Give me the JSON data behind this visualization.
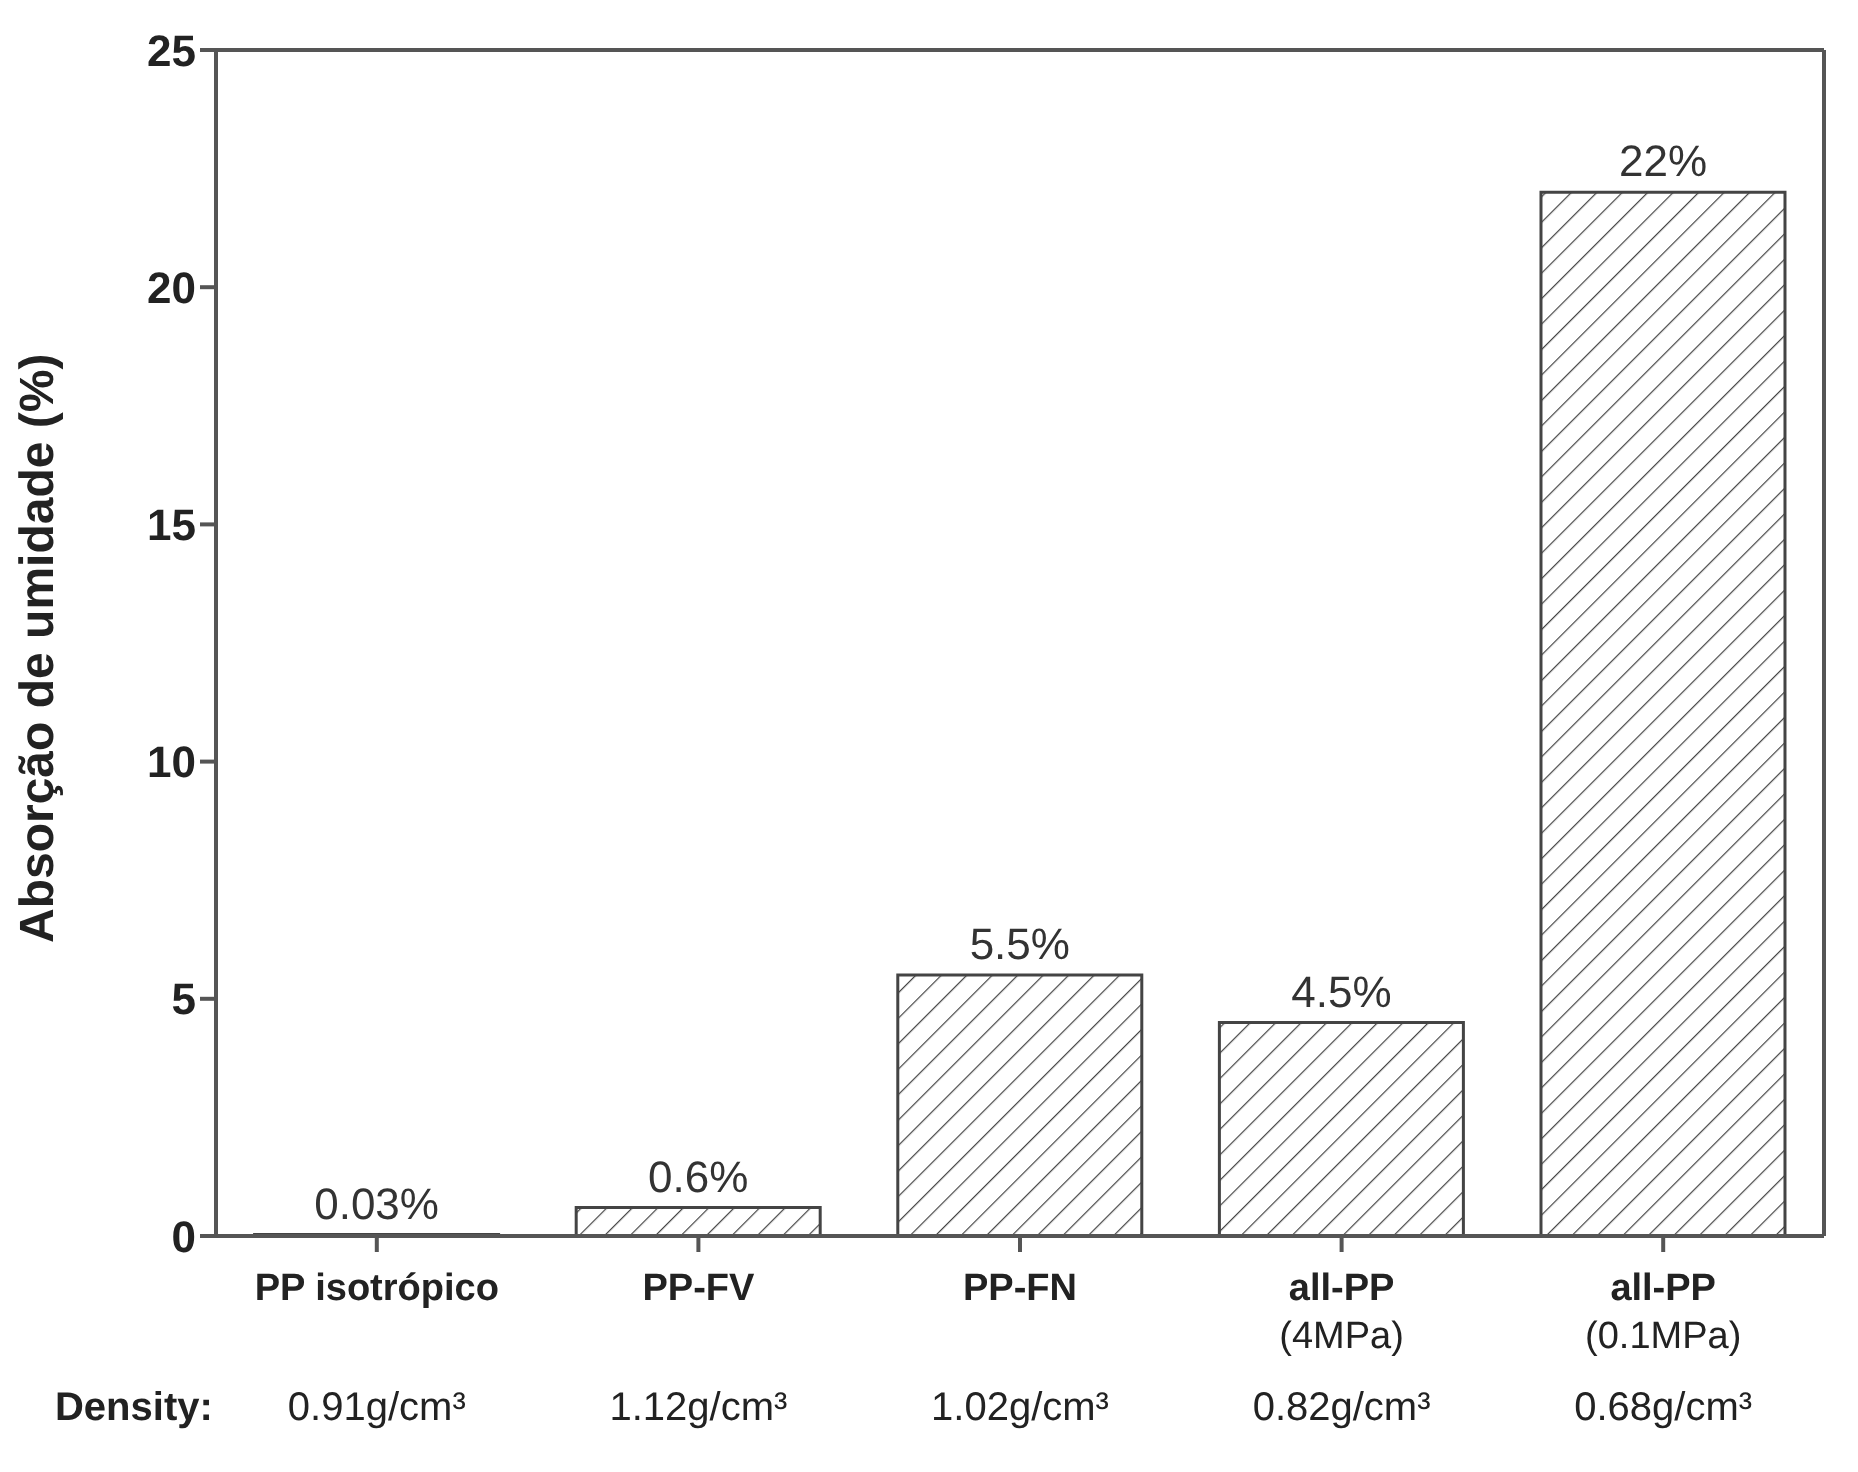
{
  "chart_data": {
    "type": "bar",
    "ylabel": "Absorção de umidade (%)",
    "categories": [
      "PP isotrópico",
      "PP-FV",
      "PP-FN",
      "all-PP\n(4MPa)",
      "all-PP\n(0.1MPa)"
    ],
    "values": [
      0.03,
      0.6,
      5.5,
      4.5,
      22
    ],
    "value_labels": [
      "0.03%",
      "0.6%",
      "5.5%",
      "4.5%",
      "22%"
    ],
    "color": "#444444",
    "ylim": [
      0,
      25
    ],
    "yticks": [
      0,
      5,
      10,
      15,
      20,
      25
    ],
    "grid": false,
    "legend": false,
    "annotations": [
      "Density:",
      "0.91g/cm³",
      "1.12g/cm³",
      "1.02g/cm³",
      "0.82g/cm³",
      "0.68g/cm³"
    ]
  }
}
